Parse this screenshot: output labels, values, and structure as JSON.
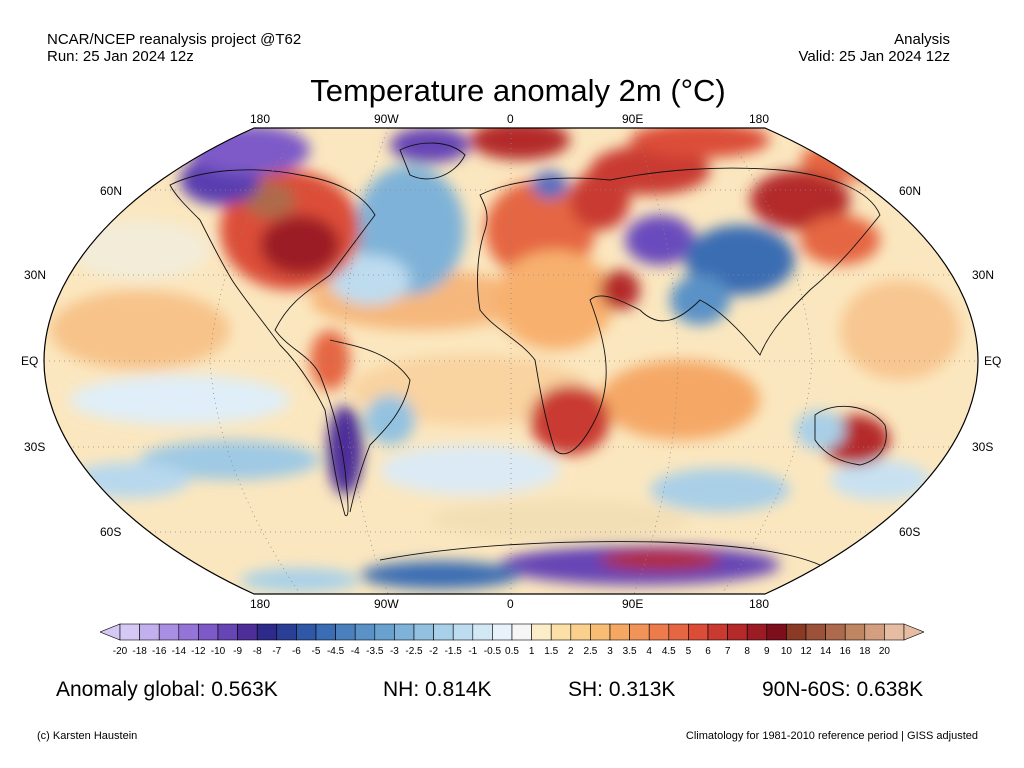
{
  "header": {
    "source_line": "NCAR/NCEP reanalysis project @T62",
    "run_line": "Run: 25 Jan 2024 12z",
    "type_line": "Analysis",
    "valid_line": "Valid: 25 Jan 2024 12z"
  },
  "title": "Temperature anomaly 2m (°C)",
  "map": {
    "projection": "Robinson",
    "grid": "dotted",
    "longitude_labels": [
      "180",
      "90W",
      "0",
      "90E",
      "180"
    ],
    "latitude_labels_left": [
      "60N",
      "30N",
      "EQ",
      "30S",
      "60S"
    ],
    "latitude_labels_right": [
      "60N",
      "30N",
      "EQ",
      "30S",
      "60S"
    ]
  },
  "colorbar": {
    "labels": [
      "-20",
      "-18",
      "-16",
      "-14",
      "-12",
      "-10",
      "-9",
      "-8",
      "-7",
      "-6",
      "-5",
      "-4.5",
      "-4",
      "-3.5",
      "-3",
      "-2.5",
      "-2",
      "-1.5",
      "-1",
      "-0.5",
      "0.5",
      "1",
      "1.5",
      "2",
      "2.5",
      "3",
      "3.5",
      "4",
      "4.5",
      "5",
      "6",
      "7",
      "8",
      "9",
      "10",
      "12",
      "14",
      "16",
      "18",
      "20"
    ],
    "colors": [
      "#d6c8f5",
      "#c2b0ee",
      "#a98fe2",
      "#9474d6",
      "#7d5ac8",
      "#6645b5",
      "#4e2f99",
      "#2e2a8a",
      "#2b3f96",
      "#2f58a6",
      "#3a6db3",
      "#4a80bd",
      "#5a92c7",
      "#6aa2cf",
      "#7fb2d8",
      "#93c2e0",
      "#a8d0e8",
      "#bddcef",
      "#d3e8f5",
      "#e8f2fa",
      "#f6f6f6",
      "#fbedc8",
      "#fbe0a8",
      "#fad08c",
      "#f8bd73",
      "#f5a862",
      "#f29458",
      "#ec7c4c",
      "#e56642",
      "#dc4d38",
      "#c93a31",
      "#b42a2b",
      "#9c1c25",
      "#7d0f1c",
      "#8a3b26",
      "#9b5238",
      "#ad6a4c",
      "#c08563",
      "#d39f80",
      "#e6bca3"
    ]
  },
  "stats": {
    "global": "Anomaly global: 0.563K",
    "nh": "NH: 0.814K",
    "sh": "SH: 0.313K",
    "arctic": "90N-60S: 0.638K"
  },
  "footer": {
    "credit": "(c) Karsten Haustein",
    "note": "Climatology for 1981-2010 reference period | GISS adjusted"
  }
}
